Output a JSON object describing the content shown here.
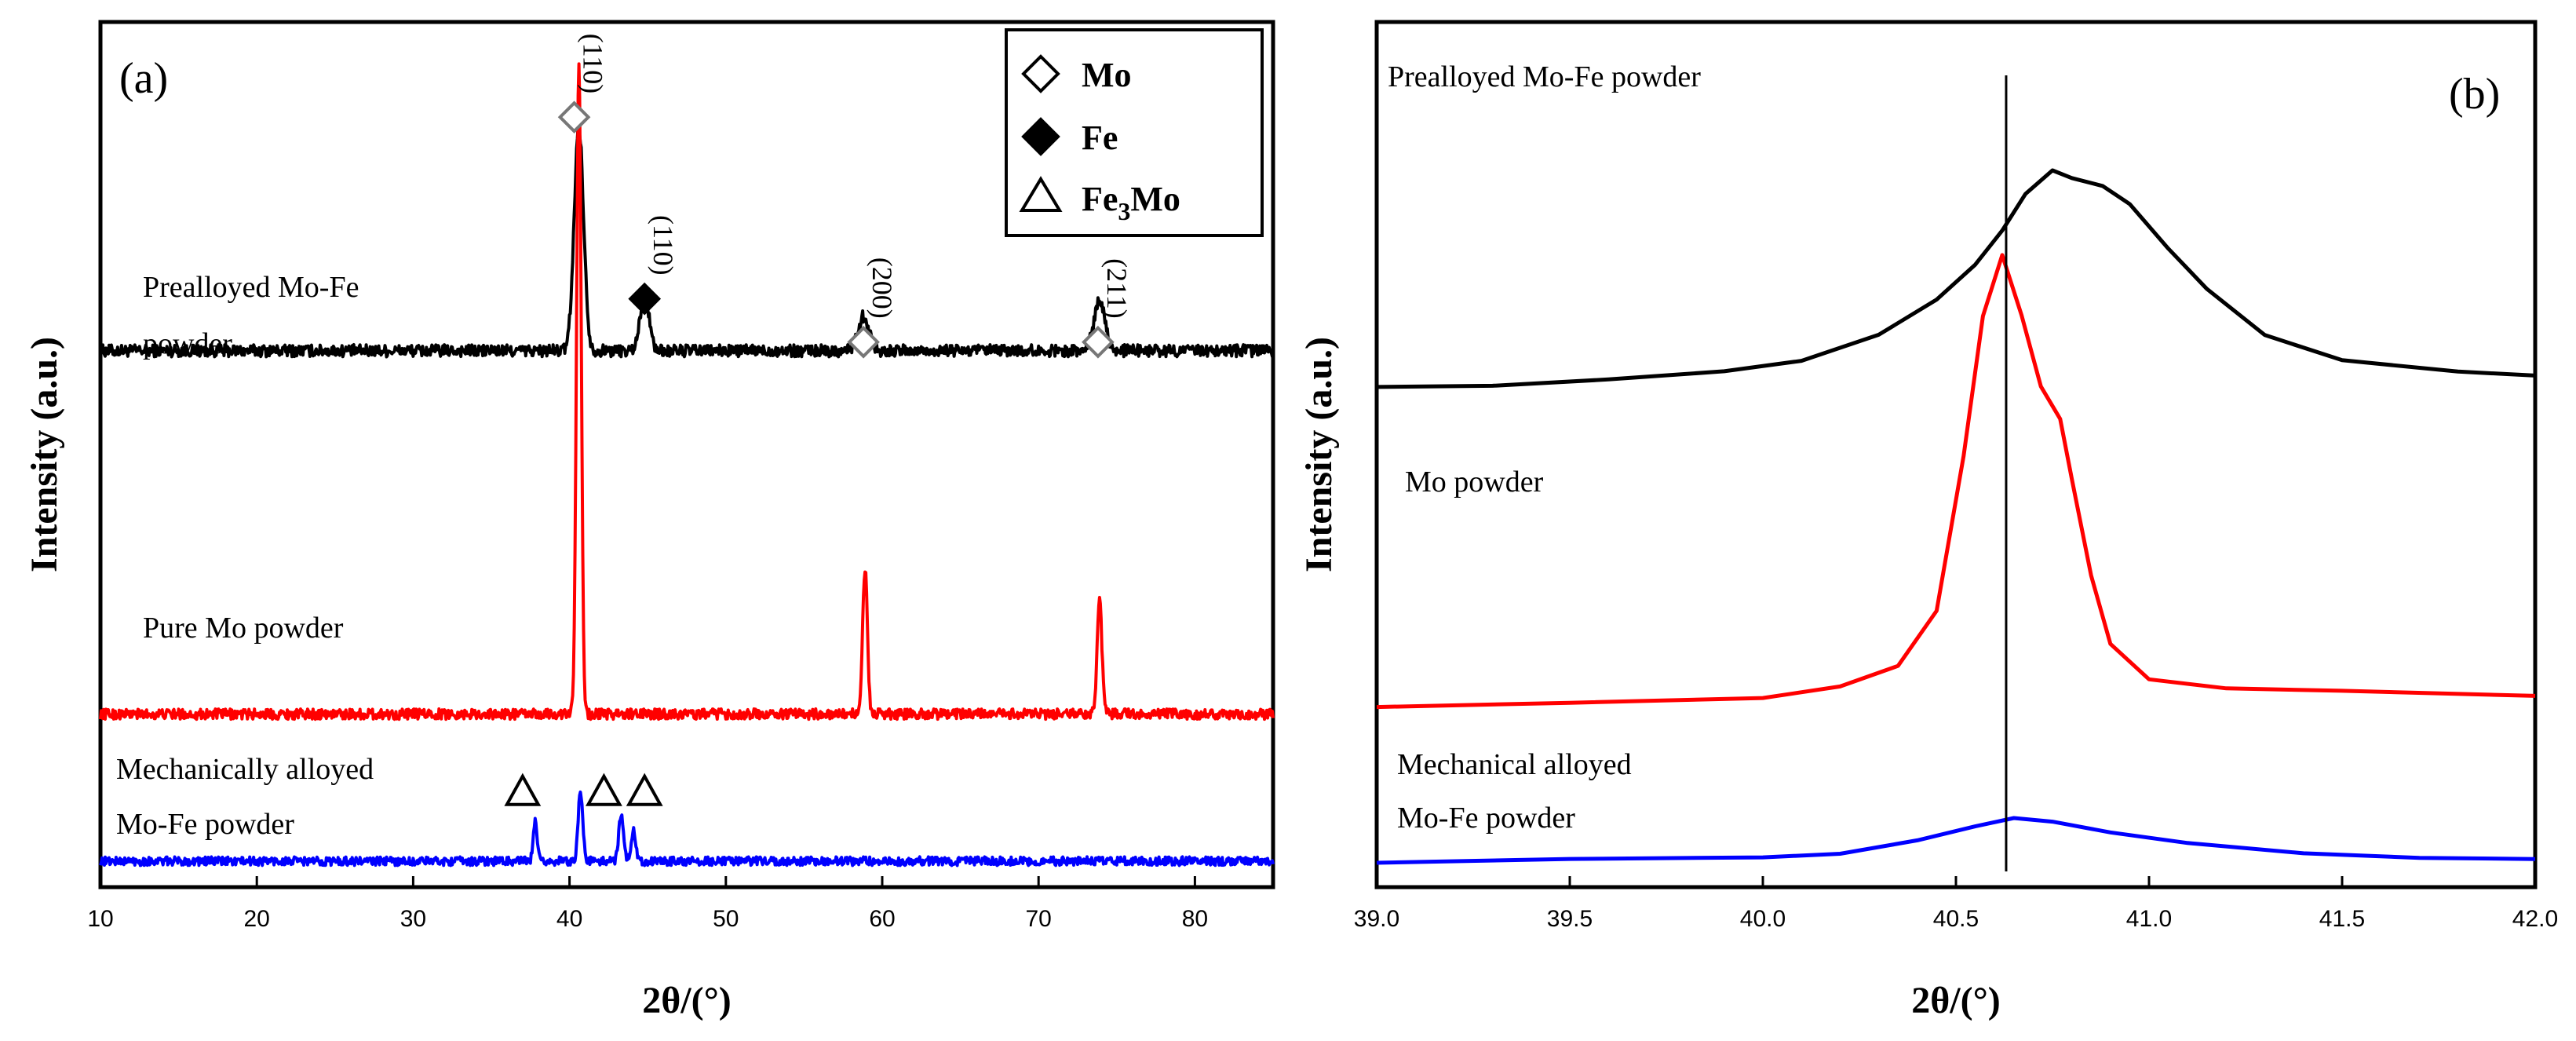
{
  "chart_data": [
    {
      "type": "line",
      "panel": "(a)",
      "xlabel": "2θ/(°)",
      "ylabel": "Intensity (a.u.)",
      "xlim": [
        10,
        85
      ],
      "ylim": [
        0,
        100
      ],
      "xticks": [
        "10",
        "20",
        "30",
        "40",
        "50",
        "60",
        "70",
        "80"
      ],
      "series": [
        {
          "name": "Prealloyed Mo-Fe powder",
          "label_lines": [
            "Prealloyed Mo-Fe",
            "powder"
          ],
          "color": "#000000",
          "baseline": 62,
          "noise": 0.7,
          "peaks": [
            {
              "x": 40.6,
              "height": 26,
              "width": 0.3
            },
            {
              "x": 44.8,
              "height": 6,
              "width": 0.3
            },
            {
              "x": 58.8,
              "height": 4,
              "width": 0.35
            },
            {
              "x": 73.9,
              "height": 6,
              "width": 0.35
            }
          ]
        },
        {
          "name": "Pure Mo powder",
          "label_lines": [
            "Pure Mo powder"
          ],
          "color": "#ff0000",
          "baseline": 20,
          "noise": 0.6,
          "peaks": [
            {
              "x": 40.6,
              "height": 75,
              "width": 0.15
            },
            {
              "x": 58.9,
              "height": 17,
              "width": 0.15
            },
            {
              "x": 73.9,
              "height": 13,
              "width": 0.15
            }
          ]
        },
        {
          "name": "Mechanically alloyed Mo-Fe powder",
          "label_lines": [
            "Mechanically alloyed",
            "Mo-Fe powder"
          ],
          "color": "#0000ff",
          "baseline": 3,
          "noise": 0.5,
          "peaks": [
            {
              "x": 37.8,
              "height": 4.5,
              "width": 0.12
            },
            {
              "x": 40.7,
              "height": 8,
              "width": 0.15
            },
            {
              "x": 43.3,
              "height": 5.5,
              "width": 0.15
            },
            {
              "x": 44.1,
              "height": 3.5,
              "width": 0.15
            }
          ]
        }
      ],
      "peak_markers": [
        {
          "phase": "Mo",
          "x": 40.3,
          "y": 89,
          "hkl": "(110)"
        },
        {
          "phase": "Fe",
          "x": 44.8,
          "y": 68,
          "hkl": "(110)"
        },
        {
          "phase": "Mo",
          "x": 58.8,
          "y": 63,
          "hkl": "(200)"
        },
        {
          "phase": "Mo",
          "x": 73.8,
          "y": 63,
          "hkl": "(211)"
        },
        {
          "phase": "Fe3Mo",
          "x": 37.0,
          "y": 11,
          "hkl": ""
        },
        {
          "phase": "Fe3Mo",
          "x": 42.2,
          "y": 11,
          "hkl": ""
        },
        {
          "phase": "Fe3Mo",
          "x": 44.8,
          "y": 11,
          "hkl": ""
        }
      ],
      "legend": {
        "position": "top-right",
        "entries": [
          {
            "phase": "Mo",
            "symbol": "open-diamond",
            "label": "Mo"
          },
          {
            "phase": "Fe",
            "symbol": "filled-diamond",
            "label": "Fe"
          },
          {
            "phase": "Fe3Mo",
            "symbol": "open-triangle",
            "label": "Fe",
            "sub": "3",
            "label_tail": "Mo"
          }
        ]
      }
    },
    {
      "type": "line",
      "panel": "(b)",
      "xlabel": "2θ/(°)",
      "ylabel": "Intensity (a.u.)",
      "xlim": [
        39.0,
        42.0
      ],
      "ylim": [
        0,
        100
      ],
      "xticks": [
        "39.0",
        "39.5",
        "40.0",
        "40.5",
        "41.0",
        "41.5",
        "42.0"
      ],
      "reference_line_x": 40.63,
      "series": [
        {
          "name": "Prealloyed Mo-Fe powder",
          "label_lines": [
            "Prealloyed Mo-Fe powder"
          ],
          "color": "#000000",
          "x": [
            39.0,
            39.3,
            39.6,
            39.9,
            40.1,
            40.3,
            40.45,
            40.55,
            40.62,
            40.68,
            40.75,
            40.8,
            40.88,
            40.95,
            41.05,
            41.15,
            41.3,
            41.5,
            41.8,
            42.0
          ],
          "y": [
            58,
            58,
            58.5,
            59.5,
            61,
            64,
            68,
            72,
            76,
            80,
            83,
            82,
            81,
            79,
            74,
            69,
            64,
            61,
            59.5,
            59
          ]
        },
        {
          "name": "Mo powder",
          "label_lines": [
            "Mo powder"
          ],
          "color": "#ff0000",
          "x": [
            39.0,
            39.5,
            40.0,
            40.2,
            40.35,
            40.45,
            40.52,
            40.57,
            40.62,
            40.67,
            40.72,
            40.77,
            40.8,
            40.85,
            40.9,
            41.0,
            41.2,
            41.5,
            42.0
          ],
          "y": [
            21,
            21.5,
            22,
            23,
            25.5,
            32,
            50,
            66,
            73,
            66,
            58,
            54,
            47,
            36,
            28,
            24,
            23,
            22.5,
            22
          ]
        },
        {
          "name": "Mechanical alloyed Mo-Fe powder",
          "label_lines": [
            "Mechanical alloyed",
            "Mo-Fe powder"
          ],
          "color": "#0000ff",
          "x": [
            39.0,
            39.5,
            40.0,
            40.2,
            40.4,
            40.55,
            40.65,
            40.75,
            40.9,
            41.1,
            41.4,
            41.7,
            42.0
          ],
          "y": [
            3,
            3.2,
            3.5,
            4,
            5.5,
            7,
            7.8,
            7.5,
            6.5,
            5,
            4,
            3.5,
            3.3
          ]
        }
      ]
    }
  ]
}
